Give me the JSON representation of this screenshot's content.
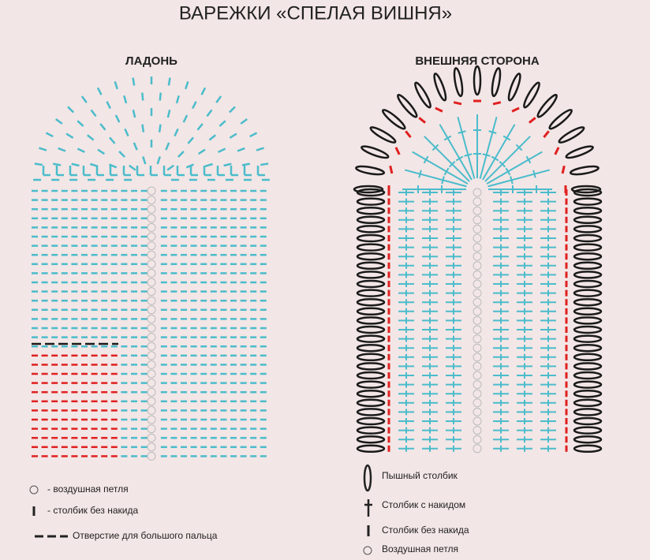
{
  "title": "ВАРЕЖКИ «СПЕЛАЯ ВИШНЯ»",
  "diagrams": [
    {
      "title": "ЛАДОНЬ",
      "legend": [
        {
          "label": "-  воздушная петля"
        },
        {
          "label": "- столбик без накида"
        },
        {
          "label": "Отверстие для большого пальца"
        }
      ]
    },
    {
      "title": "ВНЕШНЯЯ СТОРОНА",
      "legend": [
        {
          "label": "Пышный столбик"
        },
        {
          "label": "Столбик с накидом"
        },
        {
          "label": "Столбик без накида"
        },
        {
          "label": "Воздушная петля"
        }
      ]
    }
  ]
}
